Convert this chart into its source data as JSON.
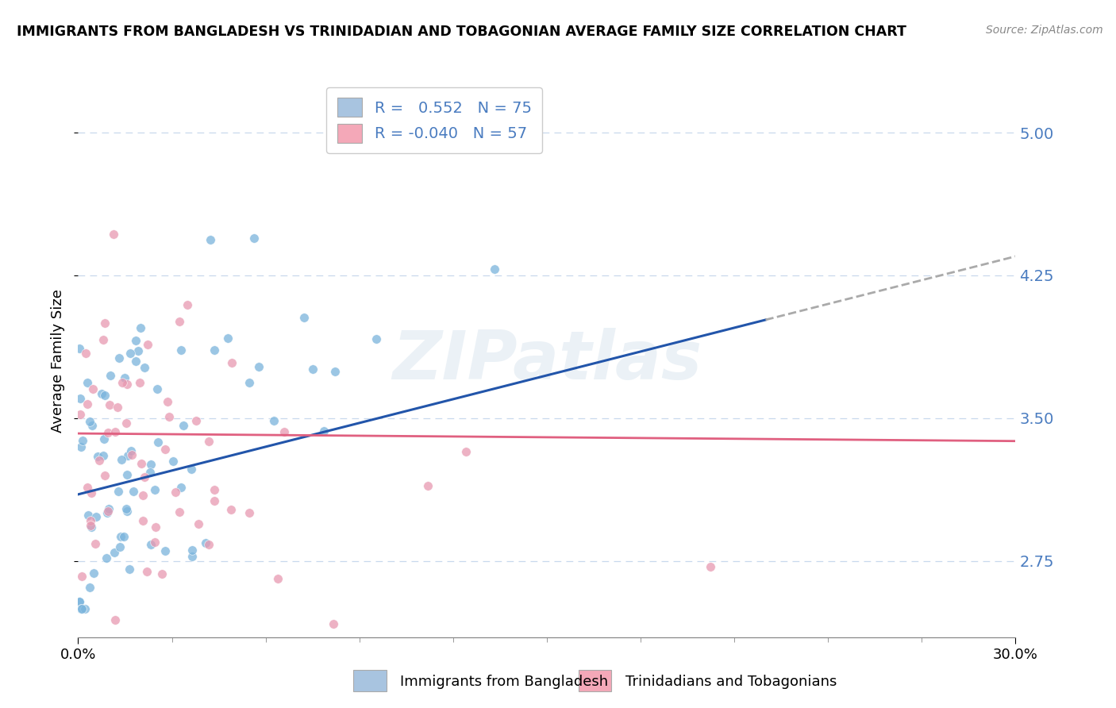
{
  "title": "IMMIGRANTS FROM BANGLADESH VS TRINIDADIAN AND TOBAGONIAN AVERAGE FAMILY SIZE CORRELATION CHART",
  "source": "Source: ZipAtlas.com",
  "ylabel": "Average Family Size",
  "yticks": [
    2.75,
    3.5,
    4.25,
    5.0
  ],
  "xlim": [
    0.0,
    30.0
  ],
  "ylim": [
    2.35,
    5.25
  ],
  "watermark": "ZIPatlas",
  "legend_color1": "#a8c4e0",
  "legend_color2": "#f4a8b8",
  "bg_color": "#ffffff",
  "grid_color": "#c8d8ed",
  "bangladesh_scatter_color": "#7ab4dc",
  "bangladesh_line_color": "#2255aa",
  "trinidad_scatter_color": "#e898b0",
  "trinidad_line_color": "#e06080",
  "axis_label_color": "#4a7cc0",
  "bottom_legend1": "Immigrants from Bangladesh",
  "bottom_legend2": "Trinidadians and Tobagonians",
  "R_bg": 0.552,
  "R_tr": -0.04,
  "N_bg": 75,
  "N_tr": 57,
  "seed": 12,
  "bg_line_x0": 0.0,
  "bg_line_y0": 3.1,
  "bg_line_x1": 30.0,
  "bg_line_y1": 4.35,
  "bg_dash_start_x": 22.0,
  "tr_line_x0": 0.0,
  "tr_line_y0": 3.42,
  "tr_line_x1": 30.0,
  "tr_line_y1": 3.38
}
